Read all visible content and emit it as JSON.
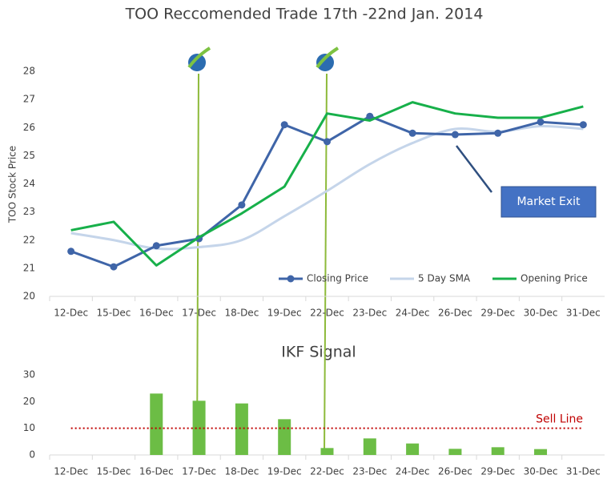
{
  "chart_data": [
    {
      "type": "line",
      "title": "TOO Reccomended Trade 17th -22nd Jan. 2014",
      "y_label": "TOO Stock Price",
      "categories": [
        "12-Dec",
        "15-Dec",
        "16-Dec",
        "17-Dec",
        "18-Dec",
        "19-Dec",
        "22-Dec",
        "23-Dec",
        "24-Dec",
        "26-Dec",
        "29-Dec",
        "30-Dec",
        "31-Dec"
      ],
      "series": [
        {
          "name": "Closing Price",
          "color": "#3f65a8",
          "markers": true,
          "smooth": false,
          "values": [
            21.6,
            21.05,
            21.8,
            22.05,
            23.25,
            26.1,
            25.5,
            26.4,
            25.8,
            25.75,
            25.8,
            26.2,
            26.1
          ]
        },
        {
          "name": "5 Day SMA",
          "color": "#c5d5ea",
          "markers": false,
          "smooth": true,
          "values": [
            22.25,
            22.0,
            21.7,
            21.75,
            22.0,
            22.85,
            23.75,
            24.7,
            25.45,
            25.95,
            25.85,
            26.05,
            25.95
          ]
        },
        {
          "name": "Opening Price",
          "color": "#17b04a",
          "markers": false,
          "smooth": false,
          "values": [
            22.35,
            22.65,
            21.1,
            22.1,
            22.95,
            23.9,
            26.5,
            26.25,
            26.9,
            26.5,
            26.35,
            26.35,
            26.75
          ]
        }
      ],
      "ylim": [
        20,
        28
      ],
      "yticks": [
        20,
        21,
        22,
        23,
        24,
        25,
        26,
        27,
        28
      ],
      "grid": false,
      "legend": "bottom-right",
      "annotation": "Market Exit"
    },
    {
      "type": "bar",
      "title": "IKF Signal",
      "categories": [
        "12-Dec",
        "15-Dec",
        "16-Dec",
        "17-Dec",
        "18-Dec",
        "19-Dec",
        "22-Dec",
        "23-Dec",
        "24-Dec",
        "26-Dec",
        "29-Dec",
        "30-Dec",
        "31-Dec"
      ],
      "values": [
        null,
        null,
        23,
        20.3,
        19.3,
        13.4,
        2.6,
        6.2,
        4.3,
        2.3,
        2.9,
        2.2,
        null
      ],
      "color": "#6cbd45",
      "ylim": [
        0,
        30
      ],
      "yticks": [
        0,
        10,
        20,
        30
      ],
      "grid": false,
      "reference_line": {
        "value": 10,
        "label": "Sell Line",
        "color": "#c00000"
      }
    }
  ]
}
